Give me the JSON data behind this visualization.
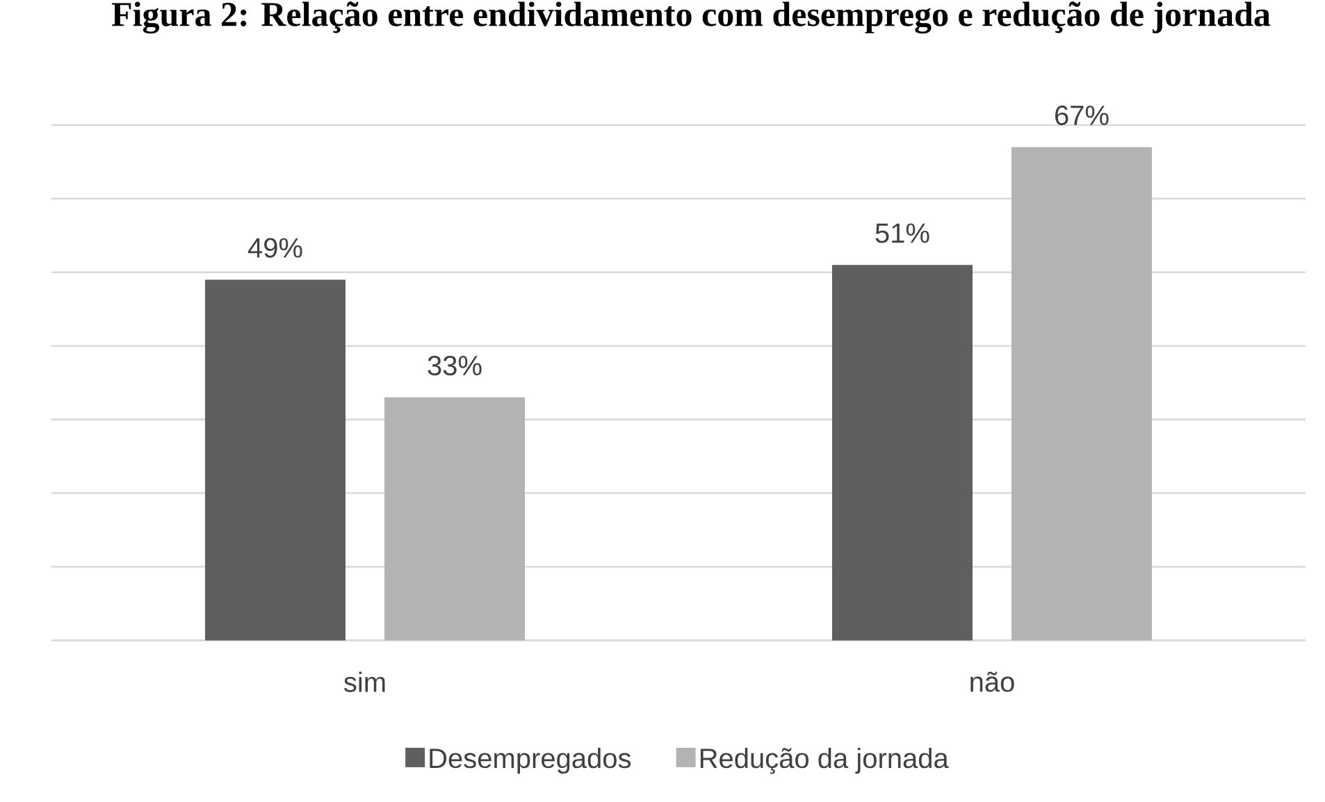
{
  "chart_data": {
    "type": "bar",
    "title": "Figura 2: Relação entre endividamento com desemprego e redução de jornada",
    "categories": [
      "sim",
      "não"
    ],
    "series": [
      {
        "name": "Desempregados",
        "color": "#5f5f5f",
        "values": [
          49,
          51
        ],
        "value_labels": [
          "49%",
          "51%"
        ]
      },
      {
        "name": "Redução da jornada",
        "color": "#b3b3b3",
        "values": [
          33,
          67
        ],
        "value_labels": [
          "33%",
          "67%"
        ]
      }
    ],
    "ylim": [
      0,
      70
    ],
    "yticks": [
      {
        "value": 0,
        "label": null
      },
      {
        "value": 10,
        "label": null
      },
      {
        "value": 20,
        "label": null
      },
      {
        "value": 30,
        "label": null
      },
      {
        "value": 40,
        "label": null
      },
      {
        "value": 50,
        "label": null
      },
      {
        "value": 60,
        "label": null
      },
      {
        "value": 70,
        "label": null
      }
    ],
    "grid": "y",
    "legend": "bottom",
    "tick_labels": "x"
  }
}
